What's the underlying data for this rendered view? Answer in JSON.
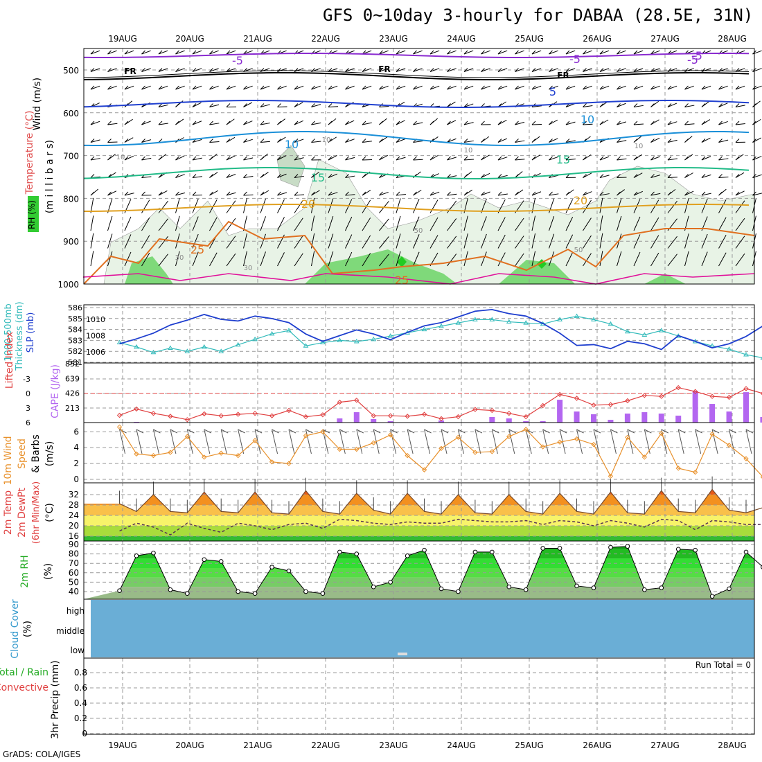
{
  "title": "GFS 0~10day 3-hourly for DABAA (28.5E, 31N)",
  "credit": "GrADS: COLA/IGES",
  "colors": {
    "rh_green": "#33cc33",
    "temp_orange": "#e07020",
    "wind_black": "#000000",
    "slp_blue": "#1f3fcf",
    "thickness_cyan": "#33bbbb",
    "lifted_red": "#e04040",
    "cape_violet": "#b366f0",
    "wind10_orange": "#e8902a",
    "cloud_blue": "#6aaed6",
    "rh2m_green": "#22bb22"
  },
  "date_labels": [
    "19AUG",
    "20AUG",
    "21AUG",
    "22AUG",
    "23AUG",
    "24AUG",
    "25AUG",
    "26AUG",
    "27AUG",
    "28AUG"
  ],
  "panels": {
    "upper": {
      "ylabel_wind": "Wind (m/s)",
      "ylabel_temp": "Temperature (°C)",
      "ylabel_rh": "RH (%)",
      "ylabel_mb": "(m i l l i b a r s)",
      "ticks": [
        "500",
        "600",
        "700",
        "800",
        "900",
        "1000"
      ],
      "contour_labels": [
        "-5",
        "-5",
        "FR",
        "FR",
        "FR",
        "-5",
        "-5",
        "5",
        "10",
        "10",
        "15",
        "15",
        "20",
        "20",
        "25",
        "25",
        "30",
        "30",
        "50",
        "10",
        "10",
        "10",
        "10",
        "50"
      ]
    },
    "slp": {
      "ylabel_thickness": "1000-500mb Thickness (dm)",
      "ylabel_slp": "SLP (mb)",
      "left_ticks": [
        "586",
        "585",
        "584",
        "583",
        "582",
        "581"
      ],
      "right_ticks": [
        "1010",
        "1008",
        "1006"
      ]
    },
    "cape": {
      "ylabel_li": "Lifted Index",
      "ylabel_cape": "CAPE (J/kg)",
      "left_ticks": [
        "-3",
        "0",
        "3",
        "6"
      ],
      "right_ticks": [
        "852",
        "639",
        "426",
        "213"
      ]
    },
    "wind10": {
      "ylabel1": "10m Wind",
      "ylabel2": "Speed",
      "ylabel3": "& Barbs",
      "ylabel4": "(m/s)",
      "ticks": [
        "6",
        "4",
        "2",
        "0"
      ]
    },
    "temp2m": {
      "ylabel1": "2m Temp",
      "ylabel2": "2m DewPt",
      "ylabel3": "(6hr Min/Max)",
      "ylabel4": "(°C)",
      "ticks": [
        "32",
        "28",
        "24",
        "20",
        "16"
      ]
    },
    "rh2m": {
      "ylabel1": "2m RH",
      "ylabel2": "(%)",
      "ticks": [
        "90",
        "80",
        "70",
        "60",
        "50",
        "40"
      ]
    },
    "cloud": {
      "ylabel1": "Cloud Cover",
      "ylabel2": "(%)",
      "levels": [
        "high",
        "middle",
        "low"
      ]
    },
    "precip": {
      "ylabel1": "Total / Rain",
      "ylabel2": "Convective",
      "ylabel3": "3hr Precip (mm)",
      "ticks": [
        "0.8",
        "0.6",
        "0.4",
        "0.2",
        "0"
      ],
      "run_total": "Run Total = 0"
    }
  },
  "chart_data": [
    {
      "type": "line",
      "title": "SLP (mb) and 1000-500mb Thickness (dm)",
      "x": [
        "18AUG18",
        "19AUG00",
        "19AUG06",
        "19AUG12",
        "19AUG18",
        "20AUG00",
        "20AUG06",
        "20AUG12",
        "20AUG18",
        "21AUG00",
        "21AUG06",
        "21AUG12",
        "21AUG18",
        "22AUG00",
        "22AUG06",
        "22AUG12",
        "22AUG18",
        "23AUG00",
        "23AUG06",
        "23AUG12",
        "23AUG18",
        "24AUG00",
        "24AUG06",
        "24AUG12",
        "24AUG18",
        "25AUG00",
        "25AUG06",
        "25AUG12",
        "25AUG18",
        "26AUG00",
        "26AUG06",
        "26AUG12",
        "26AUG18",
        "27AUG00",
        "27AUG06",
        "27AUG12",
        "27AUG18",
        "28AUG00",
        "28AUG06"
      ],
      "series": [
        {
          "name": "SLP (mb)",
          "values": [
            1007.0,
            1007.6,
            1008.3,
            1009.3,
            1009.9,
            1010.6,
            1010.0,
            1009.8,
            1010.4,
            1010.1,
            1009.6,
            1008.2,
            1007.3,
            1008.0,
            1008.7,
            1008.2,
            1007.5,
            1008.4,
            1009.2,
            1009.6,
            1010.3,
            1011.0,
            1011.2,
            1010.7,
            1010.4,
            1009.5,
            1008.3,
            1006.8,
            1006.9,
            1006.4,
            1007.3,
            1007.0,
            1006.3,
            1008.0,
            1007.3,
            1006.5,
            1007.0,
            1007.9,
            1009.2
          ]
        },
        {
          "name": "1000-500mb Thickness (dm)",
          "values": [
            582.8,
            582.4,
            581.9,
            582.3,
            582.0,
            582.4,
            582.0,
            582.6,
            583.1,
            583.6,
            583.9,
            582.5,
            582.8,
            583.0,
            582.9,
            583.1,
            583.4,
            583.7,
            584.0,
            584.3,
            584.6,
            584.9,
            584.9,
            584.7,
            584.6,
            584.5,
            584.9,
            585.2,
            584.9,
            584.5,
            583.8,
            583.5,
            583.9,
            583.4,
            582.9,
            582.5,
            582.2,
            581.7,
            581.4
          ]
        }
      ]
    },
    {
      "type": "bar",
      "title": "CAPE (J/kg) and Lifted Index",
      "x": [
        "18AUG18",
        "19AUG00",
        "19AUG06",
        "19AUG12",
        "19AUG18",
        "20AUG00",
        "20AUG06",
        "20AUG12",
        "20AUG18",
        "21AUG00",
        "21AUG06",
        "21AUG12",
        "21AUG18",
        "22AUG00",
        "22AUG06",
        "22AUG12",
        "22AUG18",
        "23AUG00",
        "23AUG06",
        "23AUG12",
        "23AUG18",
        "24AUG00",
        "24AUG06",
        "24AUG12",
        "24AUG18",
        "25AUG00",
        "25AUG06",
        "25AUG12",
        "25AUG18",
        "26AUG00",
        "26AUG06",
        "26AUG12",
        "26AUG18",
        "27AUG00",
        "27AUG06",
        "27AUG12",
        "27AUG18",
        "28AUG00",
        "28AUG06"
      ],
      "series": [
        {
          "name": "CAPE (J/kg)",
          "values": [
            0,
            10,
            0,
            0,
            0,
            0,
            0,
            0,
            0,
            0,
            0,
            0,
            0,
            60,
            150,
            50,
            20,
            0,
            0,
            30,
            0,
            0,
            80,
            60,
            20,
            20,
            330,
            160,
            120,
            40,
            130,
            150,
            130,
            100,
            460,
            270,
            160,
            440,
            80
          ]
        },
        {
          "name": "Lifted Index",
          "values": [
            4.5,
            3.2,
            4.1,
            4.7,
            5.4,
            4.2,
            4.6,
            4.3,
            4.1,
            4.6,
            3.5,
            4.8,
            4.4,
            1.8,
            1.4,
            4.6,
            4.6,
            4.7,
            4.3,
            5.2,
            4.8,
            3.3,
            3.5,
            4.1,
            4.8,
            2.5,
            0.2,
            1.0,
            2.4,
            2.3,
            1.5,
            0.4,
            0.6,
            -1.2,
            -0.4,
            0.6,
            0.8,
            -1.0,
            0.0
          ]
        }
      ]
    },
    {
      "type": "line",
      "title": "10m Wind Speed (m/s)",
      "x": [
        "18AUG18",
        "19AUG00",
        "19AUG06",
        "19AUG12",
        "19AUG18",
        "20AUG00",
        "20AUG06",
        "20AUG12",
        "20AUG18",
        "21AUG00",
        "21AUG06",
        "21AUG12",
        "21AUG18",
        "22AUG00",
        "22AUG06",
        "22AUG12",
        "22AUG18",
        "23AUG00",
        "23AUG06",
        "23AUG12",
        "23AUG18",
        "24AUG00",
        "24AUG06",
        "24AUG12",
        "24AUG18",
        "25AUG00",
        "25AUG06",
        "25AUG12",
        "25AUG18",
        "26AUG00",
        "26AUG06",
        "26AUG12",
        "26AUG18",
        "27AUG00",
        "27AUG06",
        "27AUG12",
        "27AUG18",
        "28AUG00",
        "28AUG06"
      ],
      "series": [
        {
          "name": "10m Wind Speed",
          "values": [
            6.6,
            3.2,
            3.0,
            3.4,
            5.4,
            2.8,
            3.3,
            3.0,
            4.9,
            2.2,
            2.0,
            5.5,
            6.0,
            3.8,
            3.8,
            4.6,
            5.6,
            3.0,
            1.2,
            3.9,
            5.3,
            3.4,
            3.5,
            5.4,
            6.3,
            4.1,
            4.7,
            5.1,
            4.4,
            0.4,
            5.3,
            2.8,
            5.8,
            1.4,
            0.9,
            5.7,
            4.3,
            2.6,
            0.3
          ]
        }
      ]
    },
    {
      "type": "area",
      "title": "2m Temp and 2m DewPt (°C)",
      "x": [
        "18AUG18",
        "19AUG00",
        "19AUG06",
        "19AUG12",
        "19AUG18",
        "20AUG00",
        "20AUG06",
        "20AUG12",
        "20AUG18",
        "21AUG00",
        "21AUG06",
        "21AUG12",
        "21AUG18",
        "22AUG00",
        "22AUG06",
        "22AUG12",
        "22AUG18",
        "23AUG00",
        "23AUG06",
        "23AUG12",
        "23AUG18",
        "24AUG00",
        "24AUG06",
        "24AUG12",
        "24AUG18",
        "25AUG00",
        "25AUG06",
        "25AUG12",
        "25AUG18",
        "26AUG00",
        "26AUG06",
        "26AUG12",
        "26AUG18",
        "27AUG00",
        "27AUG06",
        "27AUG12",
        "27AUG18",
        "28AUG00",
        "28AUG06"
      ],
      "series": [
        {
          "name": "2m Temp",
          "values": [
            28.5,
            25.5,
            32.0,
            25.5,
            25.0,
            33.0,
            25.5,
            25.0,
            33.0,
            25.0,
            24.5,
            33.5,
            25.5,
            24.5,
            32.5,
            26.0,
            24.5,
            32.5,
            25.5,
            24.5,
            32.0,
            25.0,
            24.5,
            32.0,
            25.5,
            24.5,
            32.5,
            25.5,
            24.5,
            33.0,
            25.0,
            24.5,
            33.5,
            25.5,
            25.0,
            34.0,
            26.0,
            25.0,
            27.0
          ]
        },
        {
          "name": "2m DewPt",
          "values": [
            18.0,
            21.0,
            19.5,
            16.5,
            21.0,
            19.0,
            17.5,
            21.0,
            20.0,
            18.5,
            20.5,
            21.0,
            19.0,
            22.5,
            22.0,
            21.0,
            20.5,
            21.5,
            21.0,
            21.0,
            22.5,
            22.0,
            21.5,
            21.5,
            22.0,
            20.5,
            22.0,
            21.5,
            20.0,
            22.0,
            21.0,
            19.5,
            22.5,
            22.0,
            18.5,
            22.0,
            21.5,
            20.5,
            20.5
          ]
        }
      ],
      "ylim": [
        14,
        34
      ]
    },
    {
      "type": "area",
      "title": "2m RH (%)",
      "x": [
        "18AUG18",
        "19AUG00",
        "19AUG06",
        "19AUG12",
        "19AUG18",
        "20AUG00",
        "20AUG06",
        "20AUG12",
        "20AUG18",
        "21AUG00",
        "21AUG06",
        "21AUG12",
        "21AUG18",
        "22AUG00",
        "22AUG06",
        "22AUG12",
        "22AUG18",
        "23AUG00",
        "23AUG06",
        "23AUG12",
        "23AUG18",
        "24AUG00",
        "24AUG06",
        "24AUG12",
        "24AUG18",
        "25AUG00",
        "25AUG06",
        "25AUG12",
        "25AUG18",
        "26AUG00",
        "26AUG06",
        "26AUG12",
        "26AUG18",
        "27AUG00",
        "27AUG06",
        "27AUG12",
        "27AUG18",
        "28AUG00",
        "28AUG06"
      ],
      "series": [
        {
          "name": "2m RH",
          "values": [
            41,
            78,
            81,
            42,
            38,
            74,
            72,
            40,
            38,
            66,
            62,
            40,
            38,
            82,
            80,
            45,
            50,
            78,
            84,
            43,
            40,
            82,
            82,
            45,
            42,
            86,
            86,
            46,
            44,
            87,
            88,
            42,
            44,
            85,
            84,
            35,
            43,
            82,
            66
          ]
        }
      ],
      "ylim": [
        30,
        90
      ]
    },
    {
      "type": "bar",
      "title": "3hr Precip (mm)",
      "x": [
        "19AUG",
        "20AUG",
        "21AUG",
        "22AUG",
        "23AUG",
        "24AUG",
        "25AUG",
        "26AUG",
        "27AUG",
        "28AUG"
      ],
      "values": [
        0,
        0,
        0,
        0,
        0,
        0,
        0,
        0,
        0,
        0
      ],
      "ylim": [
        0,
        1
      ]
    }
  ]
}
